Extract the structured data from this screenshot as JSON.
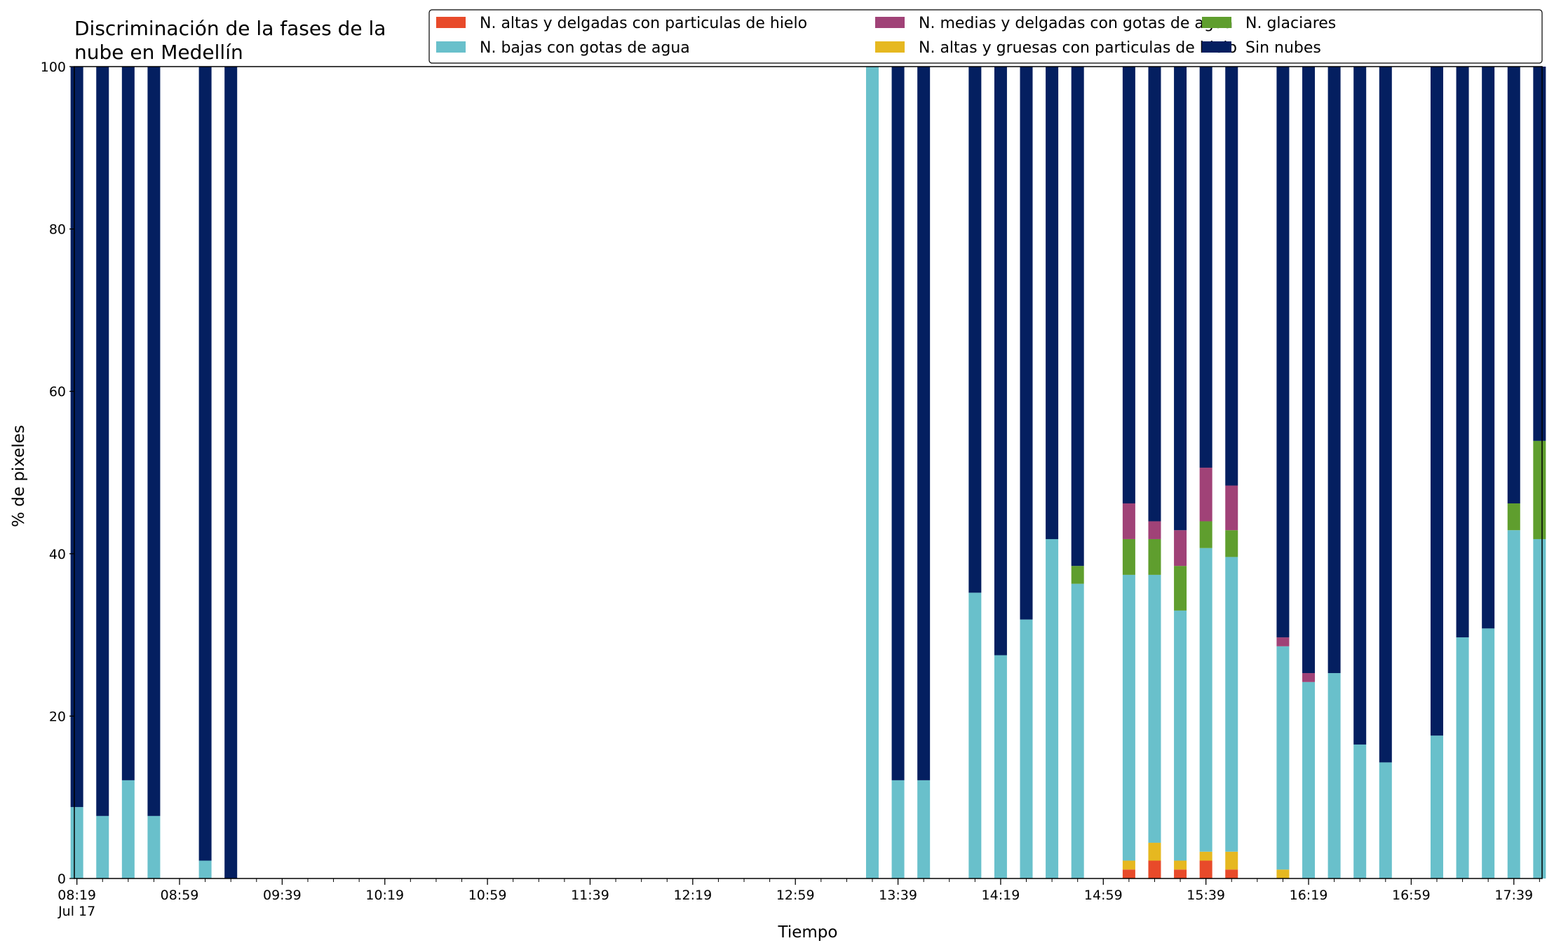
{
  "chart_data": {
    "type": "bar",
    "stacked": true,
    "title_lines": [
      "Discriminación de la fases de la",
      "nube en Medellín"
    ],
    "xlabel": "Tiempo",
    "ylabel": "% de pixeles",
    "ylim": [
      0,
      100
    ],
    "yticks": [
      0,
      20,
      40,
      60,
      80,
      100
    ],
    "grid": false,
    "legend_position": "top-right",
    "x_time_range_minutes": [
      498,
      1070
    ],
    "x_tick_labels": [
      {
        "t": 499,
        "label": "08:19",
        "sublabel": "Jul 17"
      },
      {
        "t": 539,
        "label": "08:59"
      },
      {
        "t": 579,
        "label": "09:39"
      },
      {
        "t": 619,
        "label": "10:19"
      },
      {
        "t": 659,
        "label": "10:59"
      },
      {
        "t": 699,
        "label": "11:39"
      },
      {
        "t": 739,
        "label": "12:19"
      },
      {
        "t": 779,
        "label": "12:59"
      },
      {
        "t": 819,
        "label": "13:39"
      },
      {
        "t": 859,
        "label": "14:19"
      },
      {
        "t": 899,
        "label": "14:59"
      },
      {
        "t": 939,
        "label": "15:39"
      },
      {
        "t": 979,
        "label": "16:19"
      },
      {
        "t": 1019,
        "label": "16:59"
      },
      {
        "t": 1059,
        "label": "17:39"
      }
    ],
    "series": [
      {
        "name": "N. altas y delgadas con particulas de hielo",
        "color": "#e84a2a"
      },
      {
        "name": "N. altas y gruesas con particulas de hielo",
        "color": "#e6b820"
      },
      {
        "name": "N. bajas con gotas de agua",
        "color": "#69c0cb"
      },
      {
        "name": "N. glaciares",
        "color": "#5f9e2e"
      },
      {
        "name": "N. medias y delgadas con gotas de agua",
        "color": "#a04277"
      },
      {
        "name": "Sin nubes",
        "color": "#041f60"
      }
    ],
    "legend_order": [
      0,
      2,
      4,
      1,
      3,
      5
    ],
    "bars": [
      {
        "time": "08:19",
        "values": [
          0,
          0,
          8.8,
          0,
          0,
          91.2
        ]
      },
      {
        "time": "08:29",
        "values": [
          0,
          0,
          7.7,
          0,
          0,
          92.3
        ]
      },
      {
        "time": "08:39",
        "values": [
          0,
          0,
          12.1,
          0,
          0,
          87.9
        ]
      },
      {
        "time": "08:49",
        "values": [
          0,
          0,
          7.7,
          0,
          0,
          92.3
        ]
      },
      {
        "time": "09:09",
        "values": [
          0,
          0,
          2.2,
          0,
          0,
          97.8
        ]
      },
      {
        "time": "09:19",
        "values": [
          0,
          0,
          0,
          0,
          0,
          100
        ]
      },
      {
        "time": "13:29",
        "values": [
          0,
          0,
          100,
          0,
          0,
          0
        ]
      },
      {
        "time": "13:39",
        "values": [
          0,
          0,
          12.1,
          0,
          0,
          87.9
        ]
      },
      {
        "time": "13:49",
        "values": [
          0,
          0,
          12.1,
          0,
          0,
          87.9
        ]
      },
      {
        "time": "14:09",
        "values": [
          0,
          0,
          35.2,
          0,
          0,
          64.8
        ]
      },
      {
        "time": "14:19",
        "values": [
          0,
          0,
          27.5,
          0,
          0,
          72.5
        ]
      },
      {
        "time": "14:29",
        "values": [
          0,
          0,
          31.9,
          0,
          0,
          68.1
        ]
      },
      {
        "time": "14:39",
        "values": [
          0,
          0,
          41.8,
          0,
          0,
          58.2
        ]
      },
      {
        "time": "14:49",
        "values": [
          0,
          0,
          36.3,
          2.2,
          0,
          61.5
        ]
      },
      {
        "time": "15:09",
        "values": [
          1.1,
          1.1,
          35.2,
          4.4,
          4.4,
          53.8
        ]
      },
      {
        "time": "15:19",
        "values": [
          2.2,
          2.2,
          33.0,
          4.4,
          2.2,
          56.0
        ]
      },
      {
        "time": "15:29",
        "values": [
          1.1,
          1.1,
          30.8,
          5.5,
          4.4,
          57.1
        ]
      },
      {
        "time": "15:39",
        "values": [
          2.2,
          1.1,
          37.4,
          3.3,
          6.6,
          49.4
        ]
      },
      {
        "time": "15:49",
        "values": [
          1.1,
          2.2,
          36.3,
          3.3,
          5.5,
          51.6
        ]
      },
      {
        "time": "16:09",
        "values": [
          0,
          1.1,
          27.5,
          0,
          1.1,
          70.3
        ]
      },
      {
        "time": "16:19",
        "values": [
          0,
          0,
          24.2,
          0,
          1.1,
          74.7
        ]
      },
      {
        "time": "16:29",
        "values": [
          0,
          0,
          25.3,
          0,
          0,
          74.7
        ]
      },
      {
        "time": "16:39",
        "values": [
          0,
          0,
          16.5,
          0,
          0,
          83.5
        ]
      },
      {
        "time": "16:49",
        "values": [
          0,
          0,
          14.3,
          0,
          0,
          85.7
        ]
      },
      {
        "time": "17:09",
        "values": [
          0,
          0,
          17.6,
          0,
          0,
          82.4
        ]
      },
      {
        "time": "17:19",
        "values": [
          0,
          0,
          29.7,
          0,
          0,
          70.3
        ]
      },
      {
        "time": "17:29",
        "values": [
          0,
          0,
          30.8,
          0,
          0,
          69.2
        ]
      },
      {
        "time": "17:39",
        "values": [
          0,
          0,
          42.9,
          3.3,
          0,
          53.8
        ]
      },
      {
        "time": "17:49",
        "values": [
          0,
          0,
          41.8,
          12.1,
          0,
          46.1
        ]
      }
    ]
  }
}
